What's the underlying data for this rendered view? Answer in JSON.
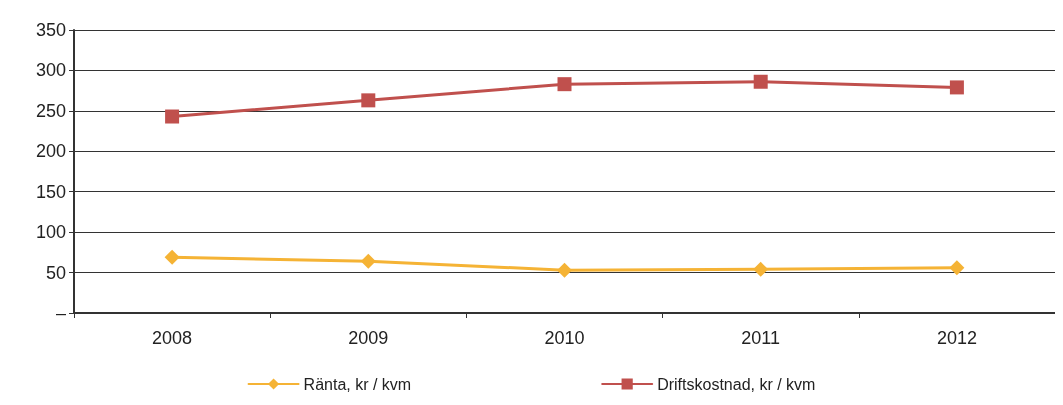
{
  "chart_data": {
    "type": "line",
    "categories": [
      "2008",
      "2009",
      "2010",
      "2011",
      "2012"
    ],
    "series": [
      {
        "name": "Ränta, kr / kvm",
        "color": "#f5b335",
        "marker": "diamond",
        "values": [
          69,
          64,
          53,
          54,
          56
        ]
      },
      {
        "name": "Driftskostnad, kr / kvm",
        "color": "#c0504d",
        "marker": "square",
        "values": [
          243,
          263,
          283,
          286,
          279
        ]
      }
    ],
    "ylim": [
      0,
      350
    ],
    "yticks": [
      {
        "value": 0,
        "label": "–"
      },
      50,
      100,
      150,
      200,
      250,
      300,
      350
    ],
    "grid": "y",
    "legend": "bottom",
    "line_style": "solid"
  }
}
